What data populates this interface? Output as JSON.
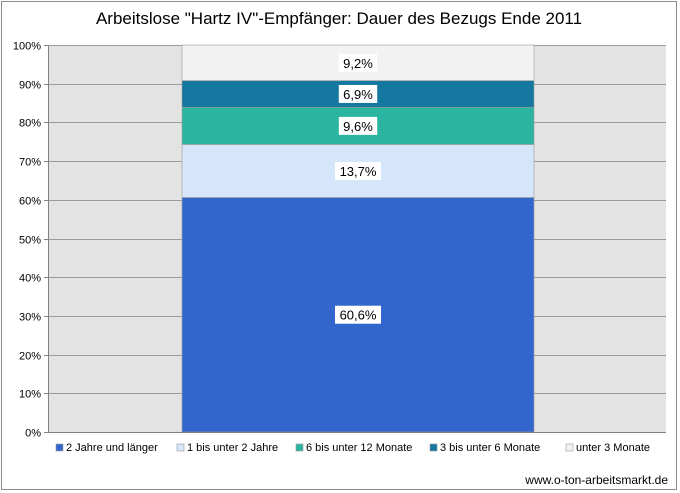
{
  "chart_data": {
    "type": "bar",
    "stacked": true,
    "percent": true,
    "title": "Arbeitslose \"Hartz IV\"-Empfänger: Dauer des Bezugs Ende 2011",
    "xlabel": "",
    "ylabel": "",
    "ylim": [
      0,
      100
    ],
    "yticks": [
      "0%",
      "10%",
      "20%",
      "30%",
      "40%",
      "50%",
      "60%",
      "70%",
      "80%",
      "90%",
      "100%"
    ],
    "grid": true,
    "legend_position": "bottom",
    "categories": [
      ""
    ],
    "series": [
      {
        "name": "2 Jahre und länger",
        "values": [
          60.6
        ],
        "label": "60,6%",
        "color": "#3366CC"
      },
      {
        "name": "1 bis unter 2 Jahre",
        "values": [
          13.7
        ],
        "label": "13,7%",
        "color": "#D6E6FA"
      },
      {
        "name": "6 bis unter 12 Monate",
        "values": [
          9.6
        ],
        "label": "9,6%",
        "color": "#2BB5A0"
      },
      {
        "name": "3 bis unter 6 Monate",
        "values": [
          6.9
        ],
        "label": "6,9%",
        "color": "#1478A0"
      },
      {
        "name": "unter 3 Monate",
        "values": [
          9.2
        ],
        "label": "9,2%",
        "color": "#F2F2F2"
      }
    ],
    "source": "www.o-ton-arbeitsmarkt.de"
  },
  "colors": {
    "plot_background": "#E3E3E3",
    "gridline": "#9B9B9B"
  }
}
